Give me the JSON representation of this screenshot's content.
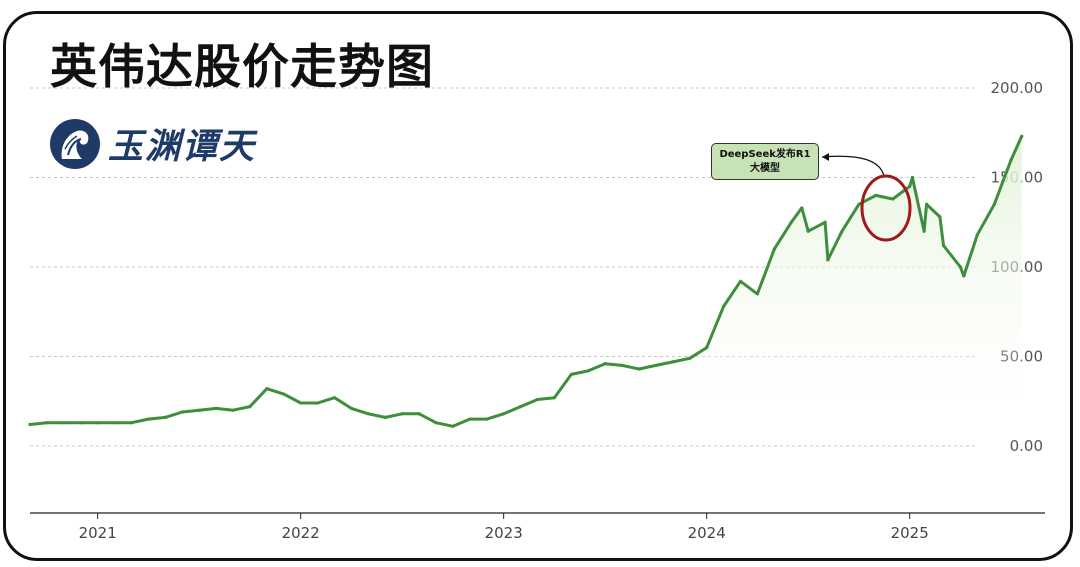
{
  "title": "英伟达股价走势图",
  "brand": {
    "name": "玉渊谭天",
    "logo_icon": "yuyuan-tantian-logo-icon"
  },
  "annotation": {
    "line1": "DeepSeek发布R1",
    "line2": "大模型"
  },
  "colors": {
    "line": "#3d8f3b",
    "fill": "#eef8e7",
    "highlight_circle": "#9e1b1b",
    "annotation_bg": "#c7e2b4",
    "title": "#111111",
    "brand": "#1e3a66"
  },
  "chart_data": {
    "type": "area",
    "title": "英伟达股价走势图",
    "xlabel": "",
    "ylabel": "",
    "ylim": [
      0,
      200
    ],
    "y_ticks": [
      "200.00",
      "150.00",
      "100.00",
      "50.00",
      "0.00"
    ],
    "x_ticks": [
      "2021",
      "2022",
      "2023",
      "2024",
      "2025"
    ],
    "grid": true,
    "x_domain": [
      "2020-09",
      "2025-09"
    ],
    "series": [
      {
        "x": [
          "2020-09",
          "2020-10",
          "2020-11",
          "2020-12",
          "2021-01",
          "2021-02",
          "2021-03",
          "2021-04",
          "2021-05",
          "2021-06",
          "2021-07",
          "2021-08",
          "2021-09",
          "2021-10",
          "2021-11",
          "2021-12",
          "2022-01",
          "2022-02",
          "2022-03",
          "2022-04",
          "2022-05",
          "2022-06",
          "2022-07",
          "2022-08",
          "2022-09",
          "2022-10",
          "2022-11",
          "2022-12",
          "2023-01",
          "2023-02",
          "2023-03",
          "2023-04",
          "2023-05",
          "2023-06",
          "2023-07",
          "2023-08",
          "2023-09",
          "2023-10",
          "2023-11",
          "2023-12",
          "2024-01",
          "2024-02",
          "2024-03",
          "2024-04",
          "2024-05",
          "2024-06",
          "2024-06-20",
          "2024-07",
          "2024-08",
          "2024-08-06",
          "2024-09",
          "2024-10",
          "2024-11",
          "2024-12",
          "2025-01",
          "2025-01-06",
          "2025-01-27",
          "2025-02",
          "2025-02-25",
          "2025-03",
          "2025-04",
          "2025-04-07",
          "2025-05",
          "2025-06",
          "2025-07",
          "2025-07-20"
        ],
        "values": [
          12,
          13,
          13,
          13,
          13,
          13,
          13,
          15,
          16,
          19,
          20,
          21,
          20,
          22,
          32,
          29,
          24,
          24,
          27,
          21,
          18,
          16,
          18,
          18,
          13,
          11,
          15,
          15,
          18,
          22,
          26,
          27,
          40,
          42,
          46,
          45,
          43,
          45,
          47,
          49,
          55,
          78,
          92,
          85,
          110,
          125,
          133,
          120,
          125,
          104,
          120,
          135,
          140,
          138,
          145,
          150,
          120,
          135,
          128,
          112,
          100,
          95,
          118,
          135,
          160,
          173
        ]
      }
    ],
    "annotations": [
      {
        "text": "DeepSeek发布R1 大模型",
        "x": "2025-01-27"
      }
    ]
  }
}
